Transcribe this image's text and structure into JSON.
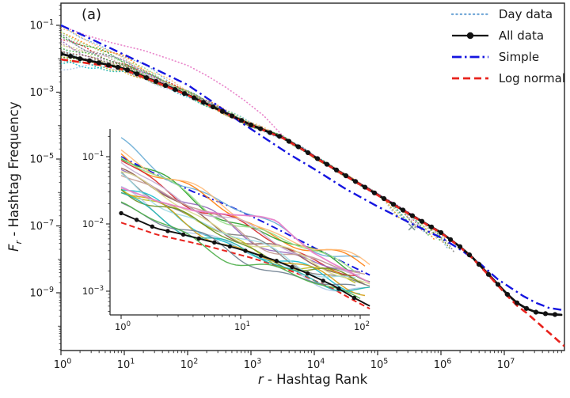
{
  "figure": {
    "panel_label": "(a)",
    "background": "#ffffff"
  },
  "legend": {
    "entries": [
      {
        "label": "Day data",
        "swatch": {
          "color": "#74a9d8",
          "dash": "1.2 4.2",
          "lw": 2.2,
          "marker": false
        }
      },
      {
        "label": "All data",
        "swatch": {
          "color": "#111111",
          "dash": "",
          "lw": 2.2,
          "marker": true
        }
      },
      {
        "label": "Simple",
        "swatch": {
          "color": "#1515e0",
          "dash": "12 4 2.5 4",
          "lw": 2.8,
          "marker": false
        }
      },
      {
        "label": "Log normal",
        "swatch": {
          "color": "#e8231d",
          "dash": "9 5",
          "lw": 2.8,
          "marker": false
        }
      }
    ]
  },
  "main_axes": {
    "xlabel_italic": "r",
    "xlabel_rest": " - Hashtag Rank",
    "ylabel_italic": "F",
    "ylabel_sub": "r",
    "ylabel_rest": " - Hashtag Frequency",
    "x_tick_exponents": [
      0,
      1,
      2,
      3,
      4,
      5,
      6,
      7
    ],
    "y_tick_exponents": [
      -1,
      -3,
      -5,
      -7,
      -9
    ]
  },
  "inset_axes": {
    "x_tick_exponents": [
      0,
      1,
      2
    ],
    "y_tick_exponents": [
      -1,
      -2,
      -3
    ]
  },
  "chart_data": {
    "type": "line",
    "title": "",
    "main": {
      "xlabel": "r - Hashtag Rank",
      "ylabel": "Fr - Hashtag Frequency",
      "xlim_log": [
        0,
        7.95
      ],
      "ylim_log": [
        -10.73,
        -0.337
      ],
      "series": [
        {
          "name": "All data",
          "color": "#111111",
          "style": "solid-markers",
          "lw": 2.8,
          "marker_step_log": 0.15,
          "points_log": [
            [
              0,
              -1.85
            ],
            [
              0.3,
              -2.0
            ],
            [
              0.6,
              -2.12
            ],
            [
              1,
              -2.3
            ],
            [
              1.5,
              -2.68
            ],
            [
              2,
              -3.08
            ],
            [
              2.5,
              -3.53
            ],
            [
              3,
              -3.98
            ],
            [
              3.5,
              -4.36
            ],
            [
              3.8,
              -4.69
            ],
            [
              4,
              -4.93
            ],
            [
              4.5,
              -5.5
            ],
            [
              5,
              -6.07
            ],
            [
              5.5,
              -6.64
            ],
            [
              6,
              -7.2
            ],
            [
              6.3,
              -7.62
            ],
            [
              6.5,
              -7.95
            ],
            [
              6.7,
              -8.35
            ],
            [
              6.9,
              -8.75
            ],
            [
              7.05,
              -9.05
            ],
            [
              7.2,
              -9.3
            ],
            [
              7.35,
              -9.47
            ],
            [
              7.5,
              -9.58
            ],
            [
              7.7,
              -9.64
            ],
            [
              7.9,
              -9.66
            ]
          ]
        },
        {
          "name": "Log normal",
          "color": "#e8231d",
          "style": "dashed",
          "lw": 2.6,
          "dash": "9 5",
          "points_log": [
            [
              0,
              -2.02
            ],
            [
              0.3,
              -2.1
            ],
            [
              0.6,
              -2.18
            ],
            [
              1,
              -2.33
            ],
            [
              1.5,
              -2.7
            ],
            [
              2,
              -3.09
            ],
            [
              2.5,
              -3.54
            ],
            [
              3,
              -3.99
            ],
            [
              3.5,
              -4.37
            ],
            [
              3.8,
              -4.7
            ],
            [
              4,
              -4.94
            ],
            [
              4.5,
              -5.51
            ],
            [
              5,
              -6.08
            ],
            [
              5.5,
              -6.65
            ],
            [
              6,
              -7.21
            ],
            [
              6.3,
              -7.63
            ],
            [
              6.5,
              -7.97
            ],
            [
              6.7,
              -8.37
            ],
            [
              6.9,
              -8.78
            ],
            [
              7.05,
              -9.1
            ],
            [
              7.2,
              -9.38
            ],
            [
              7.35,
              -9.6
            ],
            [
              7.5,
              -9.85
            ],
            [
              7.65,
              -10.1
            ],
            [
              7.8,
              -10.35
            ],
            [
              7.95,
              -10.6
            ]
          ]
        },
        {
          "name": "Simple",
          "color": "#1515e0",
          "style": "dashdot",
          "lw": 2.4,
          "dash": "11 4.5 2.5 4.5",
          "points_log": [
            [
              0,
              -1.0
            ],
            [
              0.5,
              -1.43
            ],
            [
              1,
              -1.88
            ],
            [
              1.5,
              -2.32
            ],
            [
              2,
              -2.78
            ],
            [
              2.4,
              -3.3
            ],
            [
              2.8,
              -3.85
            ],
            [
              3.2,
              -4.35
            ],
            [
              3.6,
              -4.85
            ],
            [
              4,
              -5.3
            ],
            [
              4.5,
              -5.9
            ],
            [
              5,
              -6.42
            ],
            [
              5.5,
              -6.9
            ],
            [
              6,
              -7.35
            ],
            [
              6.3,
              -7.7
            ],
            [
              6.6,
              -8.1
            ],
            [
              6.9,
              -8.6
            ],
            [
              7.1,
              -8.85
            ],
            [
              7.3,
              -9.1
            ],
            [
              7.5,
              -9.3
            ],
            [
              7.7,
              -9.45
            ],
            [
              7.93,
              -9.52
            ]
          ]
        }
      ],
      "day_lines": {
        "name": "Day data",
        "style": "dotted",
        "dash": "0.6 3.4",
        "lw": 1.6,
        "lines": [
          {
            "color": "#6baed6",
            "k": 6.5,
            "end": 6.1,
            "seed": 1
          },
          {
            "color": "#ff7f0e",
            "k": 4.8,
            "end": 5.9,
            "seed": 2
          },
          {
            "color": "#2ca02c",
            "k": 3.6,
            "end": 6.0,
            "seed": 3
          },
          {
            "color": "#d62728",
            "k": 2.7,
            "end": 5.7,
            "seed": 4
          },
          {
            "color": "#9467bd",
            "k": 2.0,
            "end": 5.8,
            "seed": 5
          },
          {
            "color": "#8c564b",
            "k": 1.5,
            "end": 5.5,
            "seed": 6
          },
          {
            "color": "#7f7f7f",
            "k": 1.1,
            "end": 6.2,
            "seed": 7
          },
          {
            "color": "#bcbd22",
            "k": 0.8,
            "end": 5.6,
            "seed": 8
          },
          {
            "color": "#17becf",
            "k": 0.55,
            "end": 5.4,
            "seed": 9
          },
          {
            "color": "#aec7e8",
            "k": 0.4,
            "end": 5.3,
            "seed": 10
          },
          {
            "color": "#ffbb78",
            "k": 5.5,
            "end": 6.05,
            "seed": 11
          },
          {
            "color": "#98df8a",
            "k": 4.1,
            "end": 5.85,
            "seed": 12
          },
          {
            "color": "#c5b0d5",
            "k": 3.0,
            "end": 5.65,
            "seed": 13
          },
          {
            "color": "#c49c94",
            "k": 2.3,
            "end": 5.95,
            "seed": 14
          },
          {
            "color": "#dbdb8d",
            "k": 1.7,
            "end": 5.45,
            "seed": 15
          },
          {
            "color": "#9edae5",
            "k": 1.25,
            "end": 5.75,
            "seed": 16
          },
          {
            "color": "#6b8e23",
            "k": 0.95,
            "end": 6.15,
            "seed": 17
          },
          {
            "color": "#d4a017",
            "k": 0.7,
            "end": 5.35,
            "seed": 18
          },
          {
            "color": "#20b2aa",
            "k": 0.5,
            "end": 5.5,
            "seed": 19
          },
          {
            "color": "#708090",
            "k": 3.3,
            "end": 5.6,
            "seed": 20
          },
          {
            "color": "#4daf4a",
            "k": 1.9,
            "end": 5.8,
            "seed": 21
          }
        ],
        "pink_line": {
          "color": "#e87fc8",
          "points_log": [
            [
              0,
              -1.02
            ],
            [
              0.4,
              -1.3
            ],
            [
              0.8,
              -1.52
            ],
            [
              1.3,
              -1.75
            ],
            [
              1.7,
              -2.0
            ],
            [
              2.0,
              -2.2
            ],
            [
              2.3,
              -2.5
            ],
            [
              2.6,
              -2.85
            ],
            [
              2.9,
              -3.25
            ],
            [
              3.2,
              -3.7
            ],
            [
              3.4,
              -4.1
            ],
            [
              3.6,
              -4.5
            ],
            [
              4,
              -4.9
            ],
            [
              4.5,
              -5.47
            ],
            [
              5,
              -6.03
            ],
            [
              5.5,
              -6.6
            ],
            [
              5.9,
              -7.08
            ]
          ]
        }
      },
      "end_marker": {
        "x_log": 5.54,
        "y_log": -7.03,
        "color": "#7d9a98"
      }
    },
    "inset": {
      "xlim_log": [
        -0.093,
        2.08
      ],
      "ylim_log": [
        -3.35,
        -0.59
      ],
      "series": [
        {
          "name": "All data",
          "color": "#111111",
          "style": "solid-markers",
          "lw": 1.9,
          "marker_step_log": 0.13,
          "points_log": [
            [
              0,
              -1.84
            ],
            [
              0.3,
              -2.07
            ],
            [
              0.48,
              -2.14
            ],
            [
              0.7,
              -2.24
            ],
            [
              0.9,
              -2.33
            ],
            [
              1.08,
              -2.42
            ],
            [
              1.3,
              -2.55
            ],
            [
              1.54,
              -2.72
            ],
            [
              1.78,
              -2.92
            ],
            [
              1.95,
              -3.1
            ],
            [
              2.08,
              -3.22
            ]
          ]
        },
        {
          "name": "Log normal",
          "color": "#e8231d",
          "style": "dashed",
          "lw": 2.0,
          "dash": "7 4",
          "points_log": [
            [
              0,
              -1.98
            ],
            [
              0.3,
              -2.16
            ],
            [
              0.7,
              -2.32
            ],
            [
              1.08,
              -2.5
            ],
            [
              1.3,
              -2.62
            ],
            [
              1.54,
              -2.78
            ],
            [
              1.78,
              -2.97
            ],
            [
              1.95,
              -3.14
            ],
            [
              2.08,
              -3.26
            ]
          ]
        },
        {
          "name": "Simple",
          "color": "#1515e0",
          "style": "dashdot",
          "lw": 2.0,
          "dash": "9 4 2 4",
          "points_log": [
            [
              0,
              -1.0
            ],
            [
              0.3,
              -1.27
            ],
            [
              0.6,
              -1.52
            ],
            [
              0.9,
              -1.73
            ],
            [
              1.2,
              -1.98
            ],
            [
              1.5,
              -2.25
            ],
            [
              1.8,
              -2.52
            ],
            [
              2.08,
              -2.76
            ]
          ]
        }
      ],
      "day_lines": {
        "style": "solid",
        "lw": 1.4,
        "lines": [
          {
            "color": "#6baed6",
            "s": 0.15,
            "e": 0.0025,
            "seed": 1
          },
          {
            "color": "#ff7f0e",
            "s": 0.12,
            "e": 0.0021,
            "seed": 2
          },
          {
            "color": "#2ca02c",
            "s": 0.1,
            "e": 0.0018,
            "seed": 3
          },
          {
            "color": "#d62728",
            "s": 0.085,
            "e": 0.0016,
            "seed": 4
          },
          {
            "color": "#9467bd",
            "s": 0.072,
            "e": 0.0014,
            "seed": 5
          },
          {
            "color": "#8c564b",
            "s": 0.06,
            "e": 0.0013,
            "seed": 6
          },
          {
            "color": "#7f7f7f",
            "s": 0.05,
            "e": 0.0012,
            "seed": 7
          },
          {
            "color": "#bcbd22",
            "s": 0.042,
            "e": 0.0011,
            "seed": 8
          },
          {
            "color": "#17becf",
            "s": 0.035,
            "e": 0.001,
            "seed": 9
          },
          {
            "color": "#aec7e8",
            "s": 0.03,
            "e": 0.0009,
            "seed": 10
          },
          {
            "color": "#ffbb78",
            "s": 0.13,
            "e": 0.0023,
            "seed": 11
          },
          {
            "color": "#98df8a",
            "s": 0.095,
            "e": 0.0019,
            "seed": 12
          },
          {
            "color": "#c5b0d5",
            "s": 0.08,
            "e": 0.0017,
            "seed": 13
          },
          {
            "color": "#c49c94",
            "s": 0.065,
            "e": 0.0015,
            "seed": 14
          },
          {
            "color": "#dbdb8d",
            "s": 0.055,
            "e": 0.00135,
            "seed": 15
          },
          {
            "color": "#9edae5",
            "s": 0.045,
            "e": 0.00125,
            "seed": 16
          },
          {
            "color": "#6b8e23",
            "s": 0.038,
            "e": 0.00115,
            "seed": 17
          },
          {
            "color": "#d4a017",
            "s": 0.032,
            "e": 0.00105,
            "seed": 18
          },
          {
            "color": "#20b2aa",
            "s": 0.027,
            "e": 0.00095,
            "seed": 19
          },
          {
            "color": "#708090",
            "s": 0.022,
            "e": 0.00085,
            "seed": 20
          },
          {
            "color": "#4daf4a",
            "s": 0.019,
            "e": 0.0008,
            "seed": 21
          }
        ],
        "pink_line": {
          "color": "#e87fc8",
          "points_log": [
            [
              0,
              -1.46
            ],
            [
              0.3,
              -1.66
            ],
            [
              0.6,
              -1.8
            ],
            [
              0.9,
              -1.86
            ],
            [
              1.17,
              -1.89
            ],
            [
              1.3,
              -1.95
            ],
            [
              1.45,
              -2.2
            ],
            [
              1.6,
              -2.42
            ],
            [
              1.78,
              -2.6
            ],
            [
              1.9,
              -2.7
            ],
            [
              2.0,
              -2.8
            ],
            [
              2.08,
              -2.87
            ]
          ]
        }
      }
    }
  }
}
